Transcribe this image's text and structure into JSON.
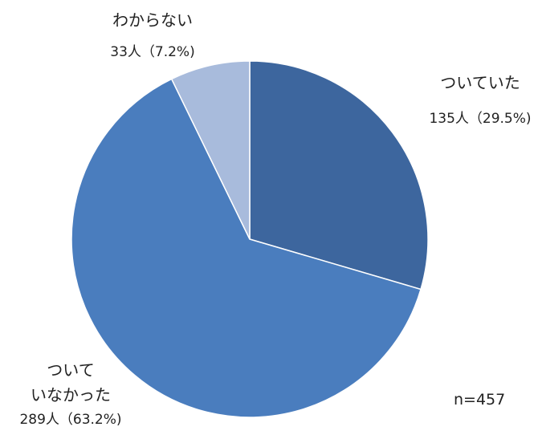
{
  "chart_data": {
    "type": "pie",
    "sample_size_label": "n=457",
    "slices": [
      {
        "label_lines": [
          "ついていた"
        ],
        "value_label": "135人（29.5%)",
        "count": 135,
        "percent": 29.5,
        "color": "#3D669E"
      },
      {
        "label_lines": [
          "ついて",
          "いなかった"
        ],
        "value_label": "289人（63.2%)",
        "count": 289,
        "percent": 63.2,
        "color": "#4A7DBE"
      },
      {
        "label_lines": [
          "わからない"
        ],
        "value_label": "33人（7.2%)",
        "count": 33,
        "percent": 7.2,
        "color": "#A8BBDC"
      }
    ]
  }
}
